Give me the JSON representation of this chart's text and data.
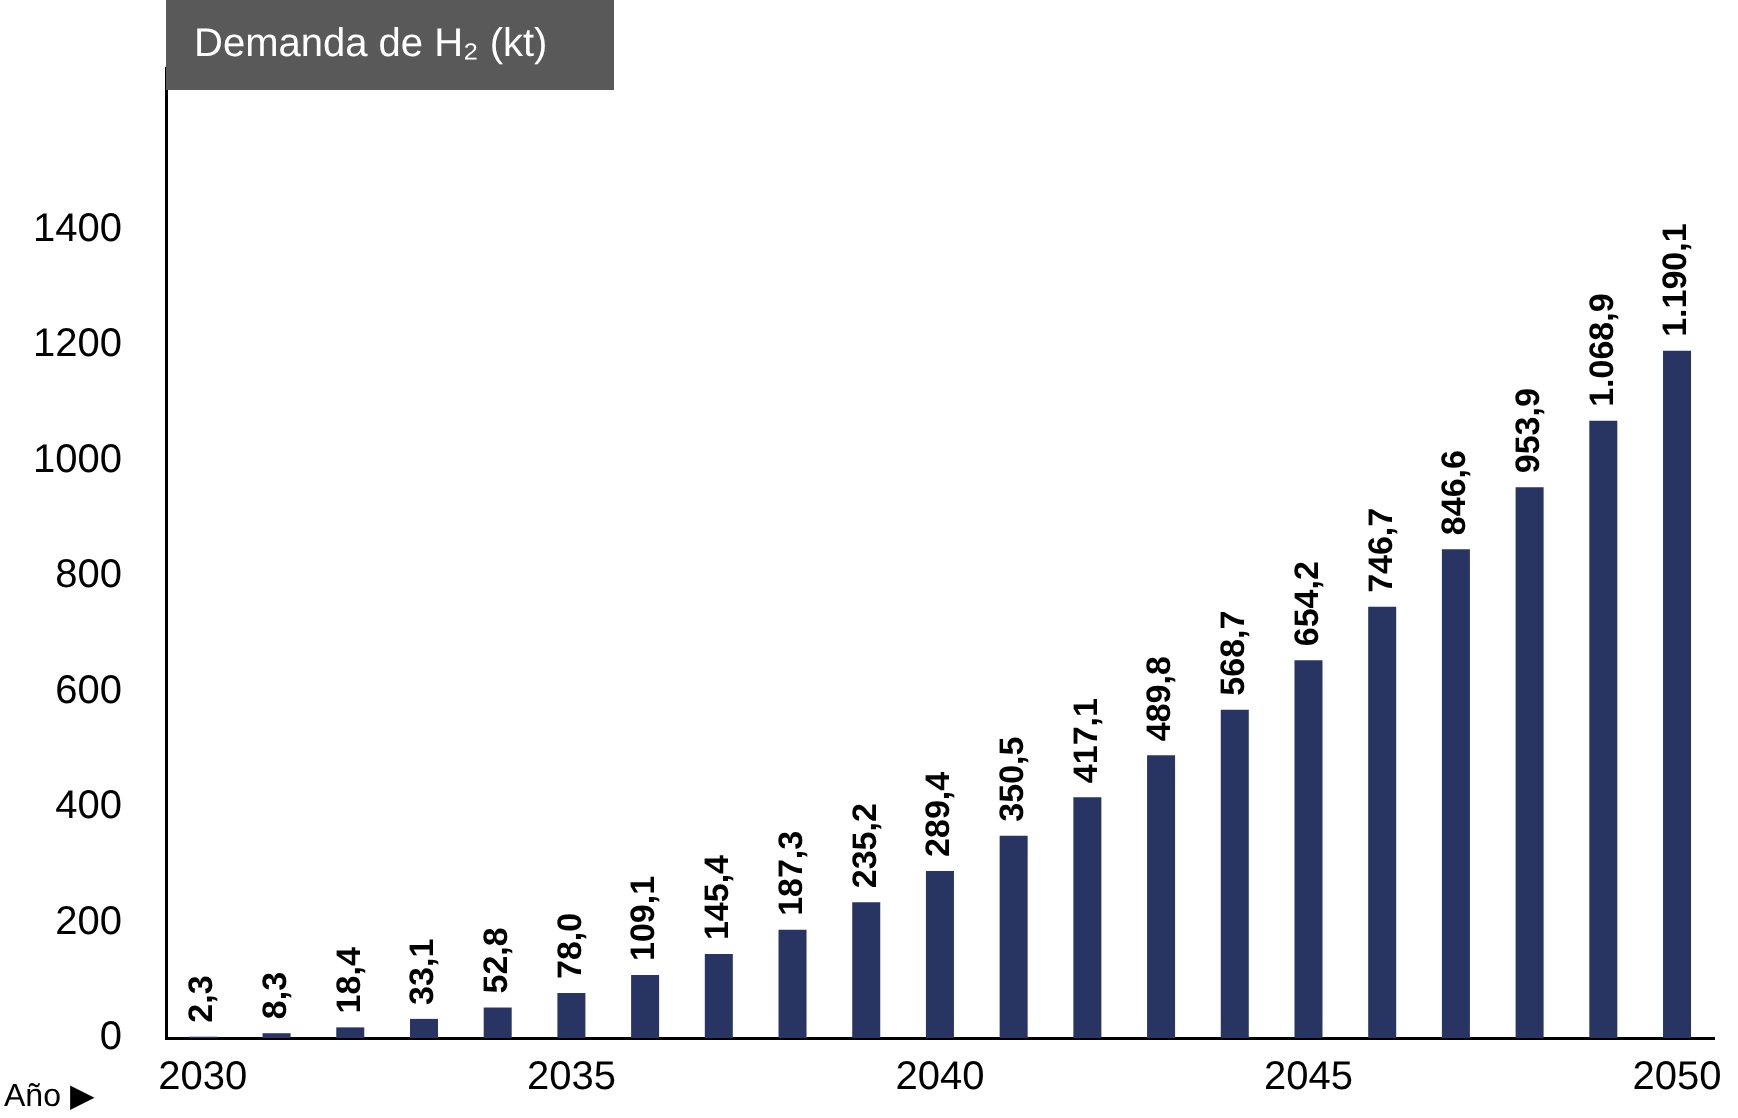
{
  "chart_data": {
    "type": "bar",
    "title": "Demanda de H₂ (kt)",
    "xlabel": "Año ▶",
    "categories": [
      "2030",
      null,
      null,
      null,
      null,
      "2035",
      null,
      null,
      null,
      null,
      "2040",
      null,
      null,
      null,
      null,
      "2045",
      null,
      null,
      null,
      null,
      "2050"
    ],
    "series": [
      {
        "color": "#283562",
        "values": [
          2.3,
          8.3,
          18.4,
          33.1,
          52.8,
          78.0,
          109.1,
          145.4,
          187.3,
          235.2,
          289.4,
          350.5,
          417.1,
          489.8,
          568.7,
          654.2,
          746.7,
          846.6,
          953.9,
          1068.9,
          1190.1
        ],
        "value_labels": [
          "2,3",
          "8,3",
          "18,4",
          "33,1",
          "52,8",
          "78,0",
          "109,1",
          "145,4",
          "187,3",
          "235,2",
          "289,4",
          "350,5",
          "417,1",
          "489,8",
          "568,7",
          "654,2",
          "746,7",
          "846,6",
          "953,9",
          "1.068,9",
          "1.190,1"
        ]
      }
    ],
    "ylim": [
      0,
      1680
    ],
    "yticks": [
      0,
      200,
      400,
      600,
      800,
      1000,
      1200,
      1400
    ],
    "grid": false,
    "legend": false
  }
}
